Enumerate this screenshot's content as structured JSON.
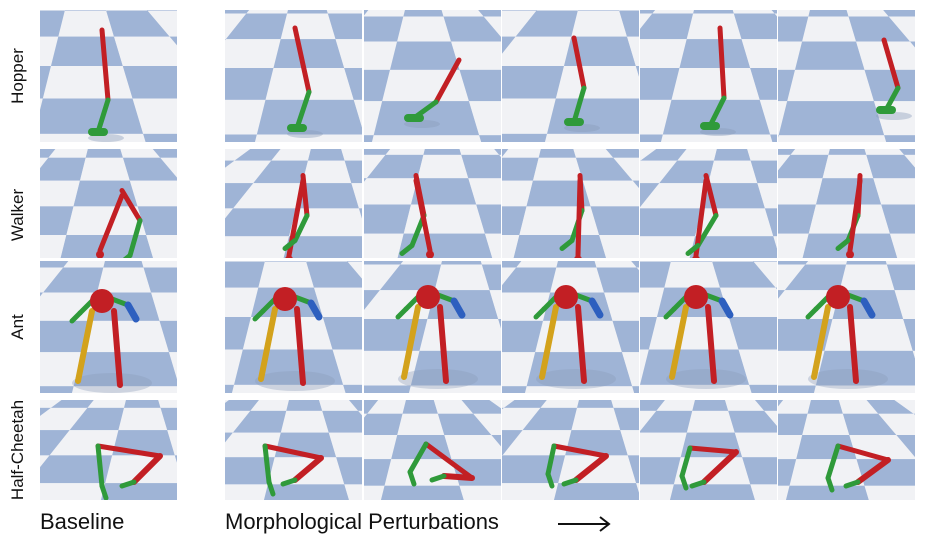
{
  "rows": [
    {
      "label": "Hopper",
      "agent": "hopper"
    },
    {
      "label": "Walker",
      "agent": "walker"
    },
    {
      "label": "Ant",
      "agent": "ant"
    },
    {
      "label": "Half-Cheetah",
      "agent": "cheetah"
    }
  ],
  "caption": {
    "baseline": "Baseline",
    "perturbations": "Morphological Perturbations"
  },
  "colors": {
    "floor_light": "#f1f2f5",
    "floor_dark": "#9fb4d6",
    "sky": "#c9d6ea",
    "limb_red": "#c21f24",
    "limb_green": "#2f9a3a",
    "limb_blue": "#2d5fbf",
    "limb_yellow": "#d3a21c"
  }
}
